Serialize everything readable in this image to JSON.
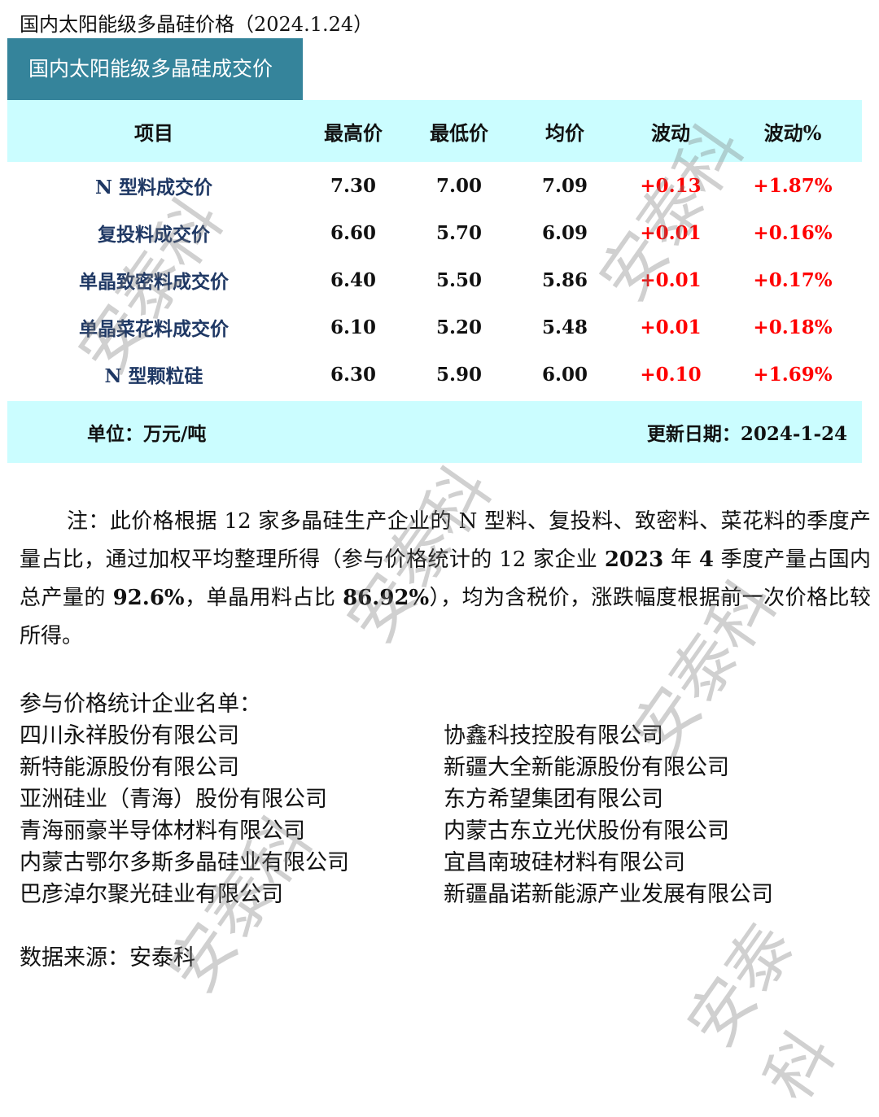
{
  "title": "国内太阳能级多晶硅价格（2024.1.24）",
  "section": "国内太阳能级多晶硅成交价",
  "table": {
    "headers": [
      "项目",
      "最高价",
      "最低价",
      "均价",
      "波动",
      "波动%"
    ],
    "rows": [
      [
        "N 型料成交价",
        "7.30",
        "7.00",
        "7.09",
        "+0.13",
        "+1.87%"
      ],
      [
        "复投料成交价",
        "6.60",
        "5.70",
        "6.09",
        "+0.01",
        "+0.16%"
      ],
      [
        "单晶致密料成交价",
        "6.40",
        "5.50",
        "5.86",
        "+0.01",
        "+0.17%"
      ],
      [
        "单晶菜花料成交价",
        "6.10",
        "5.20",
        "5.48",
        "+0.01",
        "+0.18%"
      ],
      [
        "N 型颗粒硅",
        "6.30",
        "5.90",
        "6.00",
        "+0.10",
        "+1.69%"
      ]
    ],
    "unit": "单位：万元/吨",
    "updated_label": "更新日期：",
    "updated": "2024-1-24"
  },
  "note": {
    "a": "注：此价格根据 12 家多晶硅生产企业的 N 型料、复投料、致密料、菜花料的季度产量占比，通过加权平均整理所得（参与价格统计的 12 家企业 ",
    "b": "2023",
    "c": " 年 ",
    "d": "4",
    "e": " 季度产量占国内总产量的 ",
    "f": "92.6%",
    "g": "，单晶用料占比 ",
    "h": "86.92%",
    "i": "），均为含税价，涨跌幅度根据前一次价格比较所得。"
  },
  "list_title": "参与价格统计企业名单：",
  "companies_left": [
    "四川永祥股份有限公司",
    "新特能源股份有限公司",
    "亚洲硅业（青海）股份有限公司",
    "青海丽豪半导体材料有限公司",
    "内蒙古鄂尔多斯多晶硅业有限公司",
    "巴彦淖尔聚光硅业有限公司"
  ],
  "companies_right": [
    "协鑫科技控股有限公司",
    "新疆大全新能源股份有限公司",
    "东方希望集团有限公司",
    "内蒙古东立光伏股份有限公司",
    "宜昌南玻硅材料有限公司",
    "新疆晶诺新能源产业发展有限公司"
  ],
  "source": "数据来源：安泰科",
  "watermark": "安泰科",
  "colors": {
    "header_bg": "#35849b",
    "table_bg": "#cbfdff",
    "name": "#1f3864",
    "change": "#ff0000"
  }
}
